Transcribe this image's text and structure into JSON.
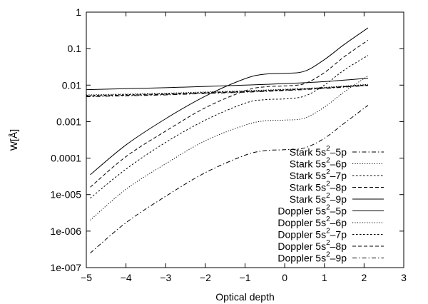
{
  "chart_data": {
    "type": "line",
    "xlabel": "Optical depth",
    "ylabel": "W[Å]",
    "xlim": [
      -5,
      3
    ],
    "ylim": [
      1e-07,
      1
    ],
    "yscale": "log",
    "legend_position": "bottom-right",
    "grid": false,
    "x_ticks": [
      -5,
      -4,
      -3,
      -2,
      -1,
      0,
      1,
      2,
      3
    ],
    "x_tick_labels": [
      "−5",
      "−4",
      "−3",
      "−2",
      "−1",
      "0",
      "1",
      "2",
      "3"
    ],
    "y_ticks": [
      1e-07,
      1e-06,
      1e-05,
      0.0001,
      0.001,
      0.01,
      0.1,
      1
    ],
    "y_tick_labels": [
      "1e-007",
      "1e-006",
      "1e-005",
      "0.0001",
      "0.001",
      "0.01",
      "0.1",
      "1"
    ],
    "series": [
      {
        "name": "Stark 5s2-5p",
        "label_prefix": "Stark 5s",
        "label_sup": "2",
        "label_suffix": "–5p",
        "dash": "dashdot",
        "x": [
          -4.9,
          -4,
          -3,
          -2,
          -1,
          -0.5,
          0,
          0.5,
          1,
          1.5,
          2.1
        ],
        "y": [
          2.5e-07,
          1.7e-06,
          9e-06,
          4e-05,
          0.00012,
          0.00016,
          0.00017,
          0.00019,
          0.00035,
          0.0009,
          0.0028
        ]
      },
      {
        "name": "Stark 5s2-6p",
        "label_prefix": "Stark 5s",
        "label_sup": "2",
        "label_suffix": "–6p",
        "dash": "dotted",
        "x": [
          -4.9,
          -4,
          -3,
          -2,
          -1,
          -0.5,
          0,
          0.5,
          1,
          1.5,
          2.1
        ],
        "y": [
          2e-06,
          1.4e-05,
          7e-05,
          0.0003,
          0.0008,
          0.00105,
          0.0011,
          0.00125,
          0.0025,
          0.0065,
          0.018
        ]
      },
      {
        "name": "Stark 5s2-7p",
        "label_prefix": "Stark 5s",
        "label_sup": "2",
        "label_suffix": "–7p",
        "dash": "shortdash",
        "x": [
          -4.9,
          -4,
          -3,
          -2,
          -1,
          -0.5,
          0,
          0.5,
          1,
          1.5,
          2.1
        ],
        "y": [
          8e-06,
          5e-05,
          0.00027,
          0.0011,
          0.0032,
          0.004,
          0.0042,
          0.005,
          0.01,
          0.026,
          0.065
        ]
      },
      {
        "name": "Stark 5s2-8p",
        "label_prefix": "Stark 5s",
        "label_sup": "2",
        "label_suffix": "–8p",
        "dash": "dashed",
        "x": [
          -4.9,
          -4,
          -3,
          -2,
          -1,
          -0.5,
          0,
          0.5,
          1,
          1.5,
          2.1
        ],
        "y": [
          1.6e-05,
          0.00011,
          0.00055,
          0.0024,
          0.007,
          0.009,
          0.0095,
          0.011,
          0.022,
          0.06,
          0.17
        ]
      },
      {
        "name": "Stark 5s2-9p",
        "label_prefix": "Stark 5s",
        "label_sup": "2",
        "label_suffix": "–9p",
        "dash": "solid",
        "x": [
          -4.9,
          -4,
          -3,
          -2,
          -1,
          -0.5,
          0,
          0.5,
          1,
          1.5,
          2.1
        ],
        "y": [
          3.5e-05,
          0.00023,
          0.0012,
          0.005,
          0.015,
          0.02,
          0.021,
          0.024,
          0.05,
          0.13,
          0.37
        ]
      },
      {
        "name": "Doppler 5s2-5p",
        "label_prefix": "Doppler 5s",
        "label_sup": "2",
        "label_suffix": "–5p",
        "dash": "solid",
        "x": [
          -5,
          -4,
          -3,
          -2,
          -1,
          0,
          1,
          2.1
        ],
        "y": [
          0.0075,
          0.008,
          0.0085,
          0.0092,
          0.01,
          0.011,
          0.0125,
          0.0155
        ]
      },
      {
        "name": "Doppler 5s2-6p",
        "label_prefix": "Doppler 5s",
        "label_sup": "2",
        "label_suffix": "–6p",
        "dash": "dotted",
        "x": [
          -5,
          -4,
          -3,
          -2,
          -1,
          0,
          1,
          2.1
        ],
        "y": [
          0.0054,
          0.0057,
          0.006,
          0.0065,
          0.007,
          0.0077,
          0.0087,
          0.0105
        ]
      },
      {
        "name": "Doppler 5s2-7p",
        "label_prefix": "Doppler 5s",
        "label_sup": "2",
        "label_suffix": "–7p",
        "dash": "shortdash",
        "x": [
          -5,
          -4,
          -3,
          -2,
          -1,
          0,
          1,
          2.1
        ],
        "y": [
          0.0052,
          0.0055,
          0.0058,
          0.0063,
          0.0068,
          0.0075,
          0.0085,
          0.0102
        ]
      },
      {
        "name": "Doppler 5s2-8p",
        "label_prefix": "Doppler 5s",
        "label_sup": "2",
        "label_suffix": "–8p",
        "dash": "dashed",
        "x": [
          -5,
          -4,
          -3,
          -2,
          -1,
          0,
          1,
          2.1
        ],
        "y": [
          0.005,
          0.0053,
          0.0056,
          0.0061,
          0.0066,
          0.0073,
          0.0083,
          0.01
        ]
      },
      {
        "name": "Doppler 5s2-9p",
        "label_prefix": "Doppler 5s",
        "label_sup": "2",
        "label_suffix": "–9p",
        "dash": "dashdot",
        "x": [
          -5,
          -4,
          -3,
          -2,
          -1,
          0,
          1,
          2.1
        ],
        "y": [
          0.0048,
          0.0051,
          0.0054,
          0.0059,
          0.0064,
          0.0071,
          0.0081,
          0.0098
        ]
      }
    ]
  }
}
